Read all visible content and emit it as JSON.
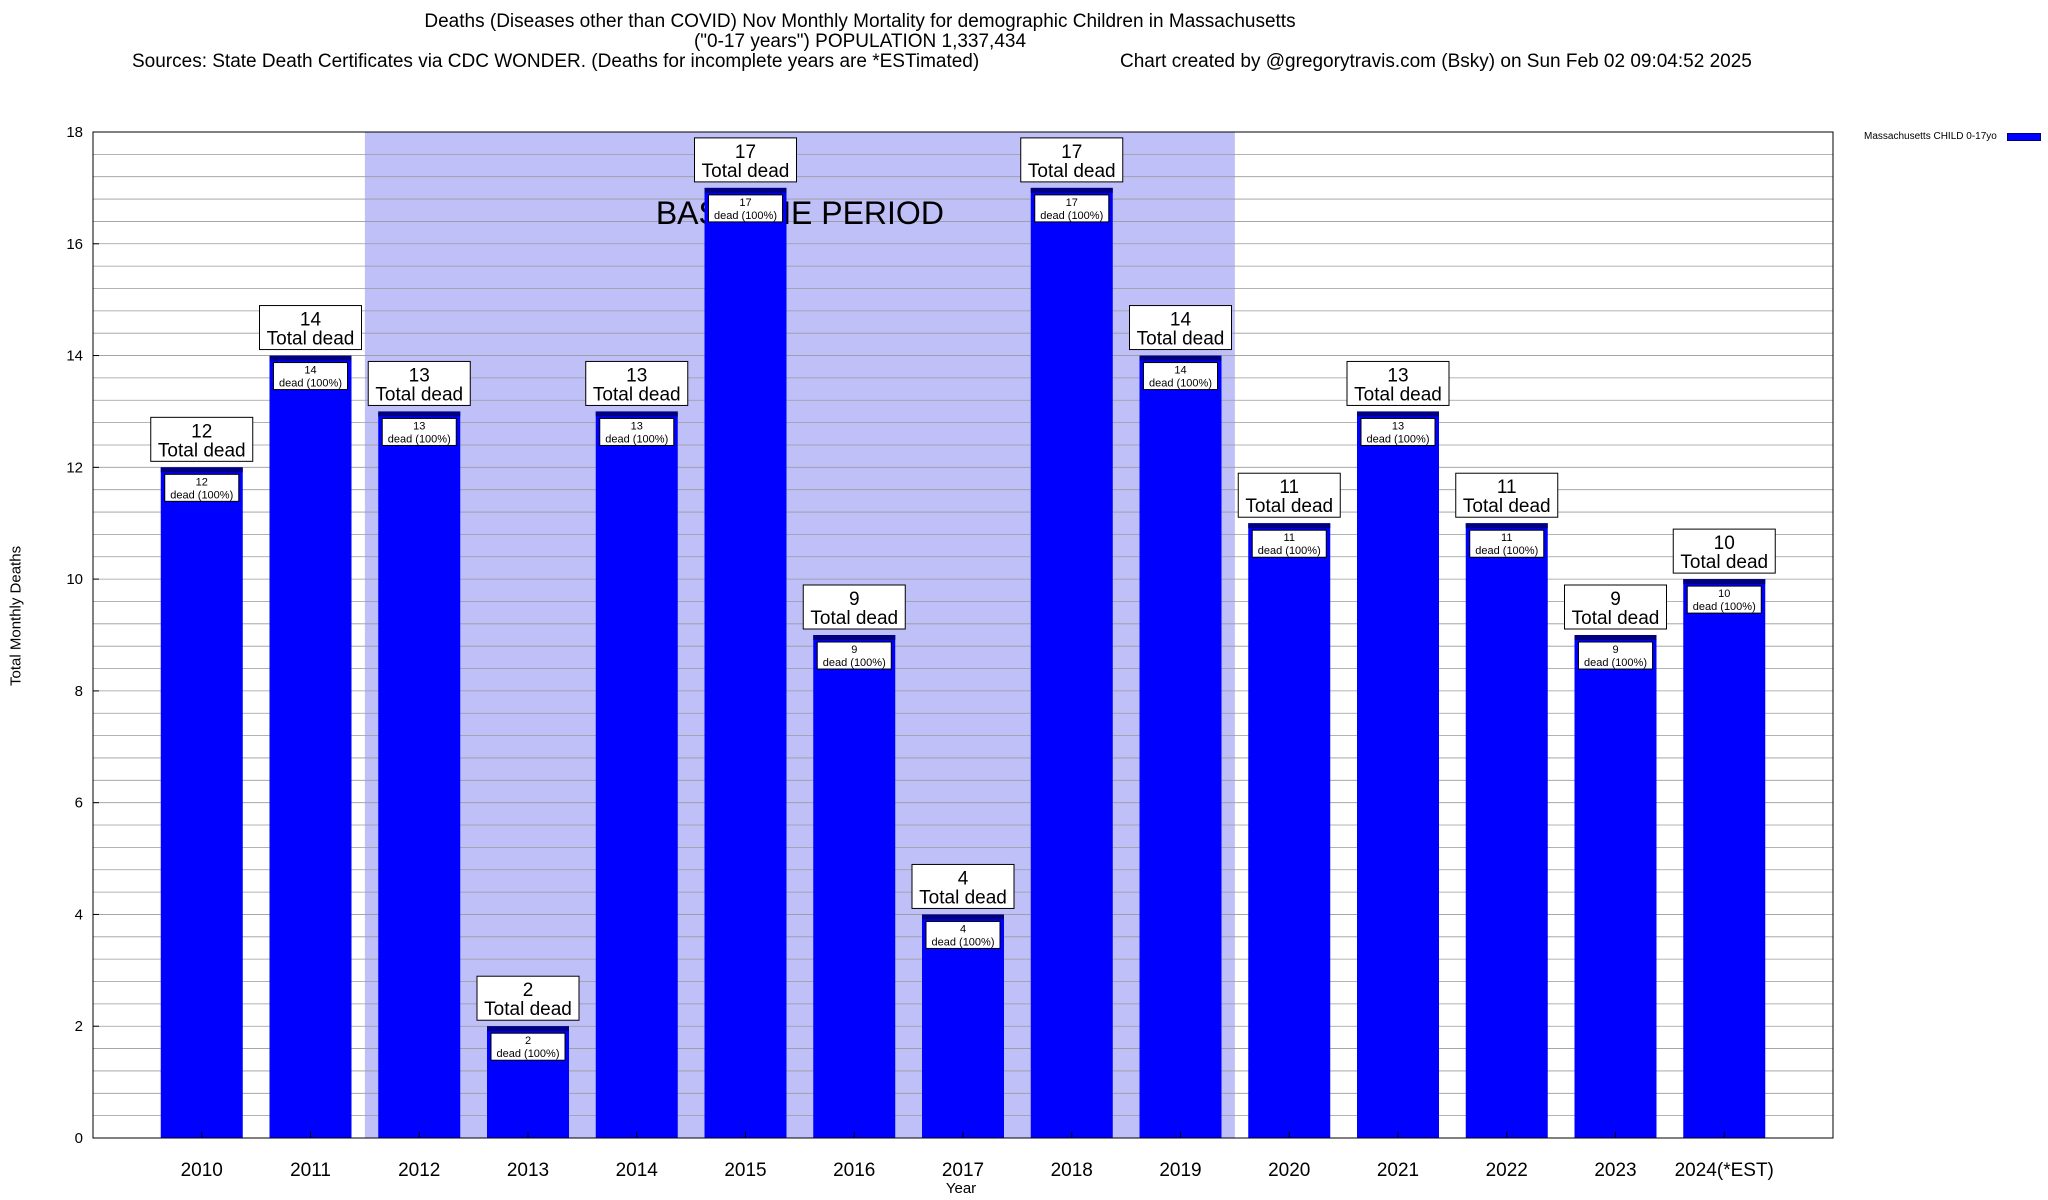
{
  "header": {
    "title": "Deaths (Diseases other than COVID) Nov Monthly Mortality for demographic Children in Massachusetts",
    "subtitle": "(\"0-17 years\") POPULATION 1,337,434",
    "sources": "Sources: State Death Certificates via CDC WONDER. (Deaths for incomplete years are *ESTimated)",
    "credit": "Chart created by @gregorytravis.com (Bsky) on Sun Feb 02 09:04:52 2025"
  },
  "legend": {
    "label": "Massachusetts CHILD 0-17yo"
  },
  "colors": {
    "bar": "#0000ff",
    "bar_dark": "#000080",
    "baseline_band": "#c0c0f8"
  },
  "chart_data": {
    "type": "bar",
    "title": "Deaths (Diseases other than COVID) Nov Monthly Mortality for demographic Children in Massachusetts",
    "xlabel": "Year",
    "ylabel": "Total Monthly Deaths",
    "ylim": [
      0,
      18
    ],
    "yticks": [
      0,
      2,
      4,
      6,
      8,
      10,
      12,
      14,
      16,
      18
    ],
    "grid": true,
    "categories": [
      "2010",
      "2011",
      "2012",
      "2013",
      "2014",
      "2015",
      "2016",
      "2017",
      "2018",
      "2019",
      "2020",
      "2021",
      "2022",
      "2023",
      "2024(*EST)"
    ],
    "values": [
      12,
      14,
      13,
      2,
      13,
      17,
      9,
      4,
      17,
      14,
      11,
      13,
      11,
      9,
      10
    ],
    "total_label": "Total dead",
    "inner_label": "dead (100%)",
    "baseline": {
      "label": "BASELINE PERIOD",
      "from": "2012",
      "to": "2019"
    },
    "series": [
      {
        "name": "Massachusetts CHILD 0-17yo",
        "values": [
          12,
          14,
          13,
          2,
          13,
          17,
          9,
          4,
          17,
          14,
          11,
          13,
          11,
          9,
          10
        ]
      }
    ]
  }
}
